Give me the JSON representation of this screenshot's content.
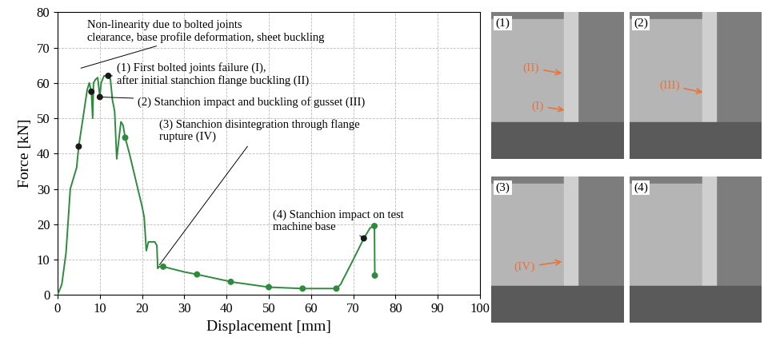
{
  "chart_data": {
    "type": "line",
    "xlabel": "Displacement [mm]",
    "ylabel": "Force [kN]",
    "x": [
      0,
      1,
      2,
      3,
      4,
      4.5,
      5,
      6,
      7,
      7.5,
      8,
      8.3,
      8.5,
      9,
      9.5,
      10,
      10.3,
      11,
      12,
      12.5,
      13,
      13.5,
      14,
      14.5,
      15,
      15.5,
      16,
      17,
      18,
      19,
      20,
      20.5,
      21,
      21.5,
      22,
      23,
      23.5,
      23.7,
      24,
      25,
      30,
      33,
      40,
      41,
      50,
      58,
      65,
      66,
      67,
      70,
      72.5,
      74,
      75,
      75.1
    ],
    "values": [
      0,
      3,
      12,
      30,
      34,
      36,
      42,
      50,
      58,
      60,
      57.5,
      50,
      60,
      61,
      61.5,
      56,
      60,
      62,
      62,
      61,
      55,
      52,
      38.5,
      44,
      49,
      48,
      44.5,
      40,
      35,
      30,
      25,
      22,
      12.5,
      15,
      15,
      15,
      14,
      7.5,
      8,
      8,
      6.5,
      5.8,
      4,
      3.7,
      2.2,
      1.8,
      1.8,
      1.8,
      3,
      10,
      16,
      19,
      19.5,
      5.5
    ],
    "color": "#2e8b3e",
    "points": {
      "x": [
        5,
        8,
        10,
        12,
        16,
        25,
        33,
        41,
        50,
        58,
        66,
        72.5,
        75,
        75.1
      ],
      "values": [
        42,
        57.5,
        56,
        62,
        44.5,
        8,
        5.8,
        3.7,
        2.2,
        1.8,
        1.8,
        16,
        19.5,
        5.5
      ],
      "colors": [
        "#1a1a1a",
        "#1a1a1a",
        "#1a1a1a",
        "#1a1a1a",
        "#2e8b3e",
        "#2e8b3e",
        "#2e8b3e",
        "#2e8b3e",
        "#2e8b3e",
        "#2e8b3e",
        "#2e8b3e",
        "#1a1a1a",
        "#2e8b3e",
        "#2e8b3e"
      ]
    },
    "xlim": [
      0,
      100
    ],
    "ylim": [
      0,
      80
    ],
    "xticks": [
      0,
      10,
      20,
      30,
      40,
      50,
      60,
      70,
      80,
      90,
      100
    ],
    "yticks": [
      0,
      10,
      20,
      30,
      40,
      50,
      60,
      70,
      80
    ],
    "grid": true,
    "annotations": [
      "Non-linearity due to bolted joints\nclearance, base profile deformation, sheet buckling",
      "(1) First bolted joints failure (I),\nafter initial stanchion flange buckling (II)",
      "(2) Stanchion impact and buckling of gusset (III)",
      "(3) Stanchion disintegration through flange\nrupture (IV)",
      "(4) Stanchion impact on test\nmachine base"
    ]
  },
  "panels": [
    {
      "label": "(1)",
      "marks": [
        "(II)",
        "(I)"
      ]
    },
    {
      "label": "(2)",
      "marks": [
        "(III)"
      ]
    },
    {
      "label": "(3)",
      "marks": [
        "(IV)"
      ]
    },
    {
      "label": "(4)",
      "marks": []
    }
  ]
}
